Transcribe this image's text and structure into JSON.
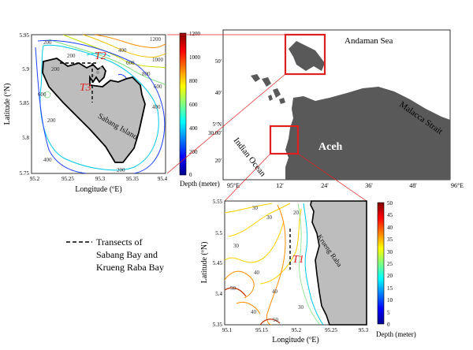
{
  "sabang_map": {
    "ylabel": "Latitude (ºN)",
    "xlabel": "Longitude (ºE)",
    "island_label": "Sabang Island",
    "transect_labels": [
      "T2",
      "T3"
    ],
    "x_ticks": [
      "95.2",
      "95.25",
      "95.3",
      "95.35",
      "95.4"
    ],
    "y_ticks": [
      "5.95",
      "5.9",
      "5.85",
      "5.8",
      "5.75"
    ],
    "contour_labels": [
      "200",
      "1200",
      "1000",
      "200",
      "400",
      "600",
      "800",
      "600",
      "400",
      "200",
      "200",
      "400",
      "600",
      "200"
    ]
  },
  "colorbar_top": {
    "ticks": [
      "1200",
      "1000",
      "800",
      "600",
      "400",
      "200",
      "0"
    ],
    "label": "Depth (meter)",
    "range": [
      0,
      1200
    ]
  },
  "aceh_map": {
    "labels": {
      "andaman": "Andaman Sea",
      "malacca": "Malacca Strait",
      "indian": "Indian Ocean",
      "aceh": "Aceh"
    },
    "lat_ticks": [
      "50'",
      "40'",
      "5°N",
      "30.00'",
      "20'"
    ],
    "lon_ticks": [
      "95°E",
      "12'",
      "24'",
      "36'",
      "48'",
      "96°E"
    ]
  },
  "krueng_map": {
    "ylabel": "Latitude (ºN)",
    "xlabel": "Longitude (ºE)",
    "coast_label": "Krueng Raba",
    "transect_label": "T1",
    "x_ticks": [
      "95.1",
      "95.15",
      "95.2",
      "95.25",
      "95.3"
    ],
    "y_ticks": [
      "5.55",
      "5.5",
      "5.45",
      "5.4",
      "5.35"
    ],
    "contour_labels": [
      "30",
      "30",
      "30",
      "20",
      "40",
      "50",
      "40",
      "30",
      "40",
      "50"
    ]
  },
  "colorbar_bottom": {
    "ticks": [
      "50",
      "45",
      "40",
      "35",
      "30",
      "25",
      "20",
      "15",
      "10",
      "5",
      "0"
    ],
    "label": "Depth (meter)",
    "range": [
      0,
      50
    ]
  },
  "legend": {
    "line1": "Transects of",
    "line2": "Sabang Bay and",
    "line3": "Krueng Raba Bay"
  },
  "colors": {
    "land": "#bdbdbd",
    "aceh_land": "#595959",
    "highlight": "#e02020"
  }
}
